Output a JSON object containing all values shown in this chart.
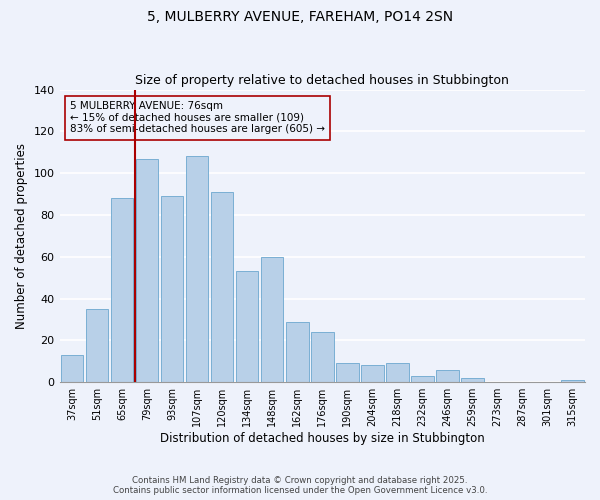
{
  "title": "5, MULBERRY AVENUE, FAREHAM, PO14 2SN",
  "subtitle": "Size of property relative to detached houses in Stubbington",
  "xlabel": "Distribution of detached houses by size in Stubbington",
  "ylabel": "Number of detached properties",
  "bar_labels": [
    "37sqm",
    "51sqm",
    "65sqm",
    "79sqm",
    "93sqm",
    "107sqm",
    "120sqm",
    "134sqm",
    "148sqm",
    "162sqm",
    "176sqm",
    "190sqm",
    "204sqm",
    "218sqm",
    "232sqm",
    "246sqm",
    "259sqm",
    "273sqm",
    "287sqm",
    "301sqm",
    "315sqm"
  ],
  "bar_values": [
    13,
    35,
    88,
    107,
    89,
    108,
    91,
    53,
    60,
    29,
    24,
    9,
    8,
    9,
    3,
    6,
    2,
    0,
    0,
    0,
    1
  ],
  "bar_color": "#b8d0e8",
  "bar_edgecolor": "#7aafd4",
  "ylim": [
    0,
    140
  ],
  "yticks": [
    0,
    20,
    40,
    60,
    80,
    100,
    120,
    140
  ],
  "vline_x": 2.5,
  "vline_color": "#aa0000",
  "annotation_title": "5 MULBERRY AVENUE: 76sqm",
  "annotation_line1": "← 15% of detached houses are smaller (109)",
  "annotation_line2": "83% of semi-detached houses are larger (605) →",
  "annotation_box_edgecolor": "#aa0000",
  "footer_line1": "Contains HM Land Registry data © Crown copyright and database right 2025.",
  "footer_line2": "Contains public sector information licensed under the Open Government Licence v3.0.",
  "background_color": "#eef2fb",
  "grid_color": "#ffffff"
}
